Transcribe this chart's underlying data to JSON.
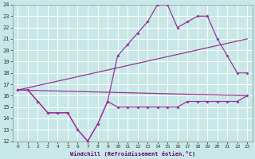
{
  "xlabel": "Windchill (Refroidissement éolien,°C)",
  "xlim": [
    -0.5,
    23.5
  ],
  "ylim": [
    12,
    24
  ],
  "yticks": [
    12,
    13,
    14,
    15,
    16,
    17,
    18,
    19,
    20,
    21,
    22,
    23,
    24
  ],
  "xticks": [
    0,
    1,
    2,
    3,
    4,
    5,
    6,
    7,
    8,
    9,
    10,
    11,
    12,
    13,
    14,
    15,
    16,
    17,
    18,
    19,
    20,
    21,
    22,
    23
  ],
  "bg_color": "#c8e8e8",
  "grid_color": "#ffffff",
  "line_color": "#993399",
  "series": [
    {
      "x": [
        0,
        1,
        2,
        3,
        4,
        5,
        6,
        7,
        8,
        9,
        10,
        11,
        12,
        13,
        14,
        15,
        16,
        17,
        18,
        19,
        20,
        21,
        22,
        23
      ],
      "y": [
        16.5,
        16.5,
        15.5,
        14.5,
        14.5,
        14.5,
        13.0,
        12.0,
        13.5,
        15.5,
        15.0,
        15.0,
        15.0,
        15.0,
        15.0,
        15.0,
        15.0,
        15.5,
        15.5,
        15.5,
        15.5,
        15.5,
        15.5,
        16.0
      ]
    },
    {
      "x": [
        0,
        1,
        2,
        3,
        4,
        5,
        6,
        7,
        8,
        9,
        10,
        11,
        12,
        13,
        14,
        15,
        16,
        17,
        18,
        19,
        20,
        21,
        22,
        23
      ],
      "y": [
        16.5,
        16.5,
        15.5,
        14.5,
        14.5,
        14.5,
        13.0,
        12.0,
        13.5,
        15.5,
        19.5,
        20.5,
        21.5,
        22.5,
        24.0,
        24.0,
        22.0,
        22.5,
        23.0,
        23.0,
        21.0,
        19.5,
        18.0,
        18.0
      ]
    },
    {
      "x": [
        0,
        23
      ],
      "y": [
        16.5,
        21.0
      ]
    },
    {
      "x": [
        0,
        23
      ],
      "y": [
        16.5,
        16.0
      ]
    }
  ]
}
